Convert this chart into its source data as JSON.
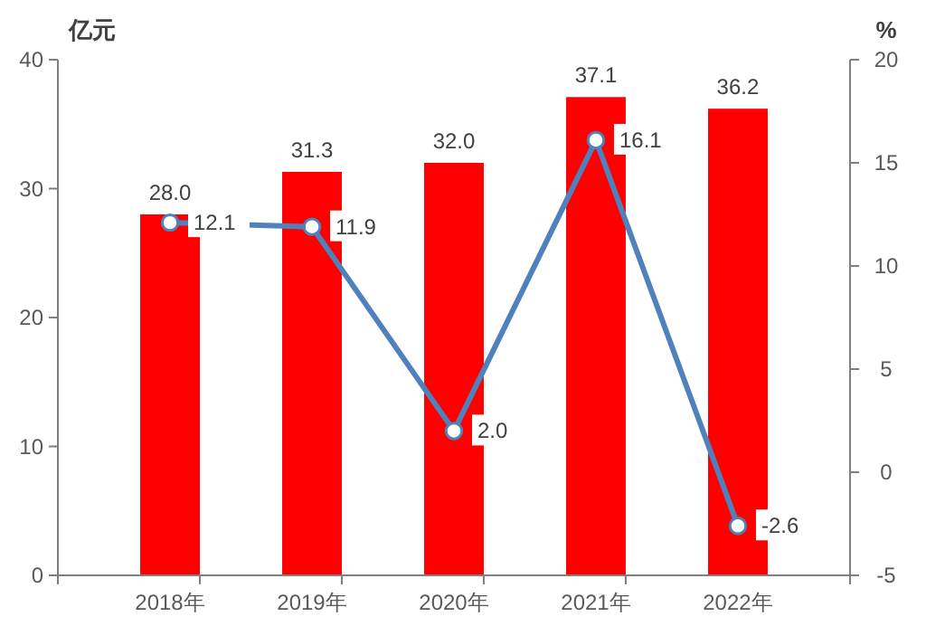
{
  "chart_data": {
    "type": "bar",
    "categories": [
      "2018年",
      "2019年",
      "2020年",
      "2021年",
      "2022年"
    ],
    "ylabel": "亿元",
    "y2label": "%",
    "ylim": [
      0,
      40
    ],
    "yticks": [
      0,
      10,
      20,
      30,
      40
    ],
    "y2lim": [
      -5,
      20
    ],
    "y2ticks": [
      -5,
      0,
      5,
      10,
      15,
      20
    ],
    "grid": false,
    "marker": "circle",
    "line_style": "solid",
    "series": [
      {
        "color": "#ff0000",
        "values": [
          28.0,
          31.3,
          32.0,
          37.1,
          36.2
        ],
        "value_labels": [
          "28.0",
          "31.3",
          "32.0",
          "37.1",
          "36.2"
        ]
      },
      {
        "type": "line",
        "axis": "y2",
        "color": "#4f81bd",
        "values": [
          12.1,
          11.9,
          2.0,
          16.1,
          -2.6
        ],
        "value_labels": [
          "12.1",
          "11.9",
          "2.0",
          "16.1",
          "-2.6"
        ]
      }
    ]
  }
}
